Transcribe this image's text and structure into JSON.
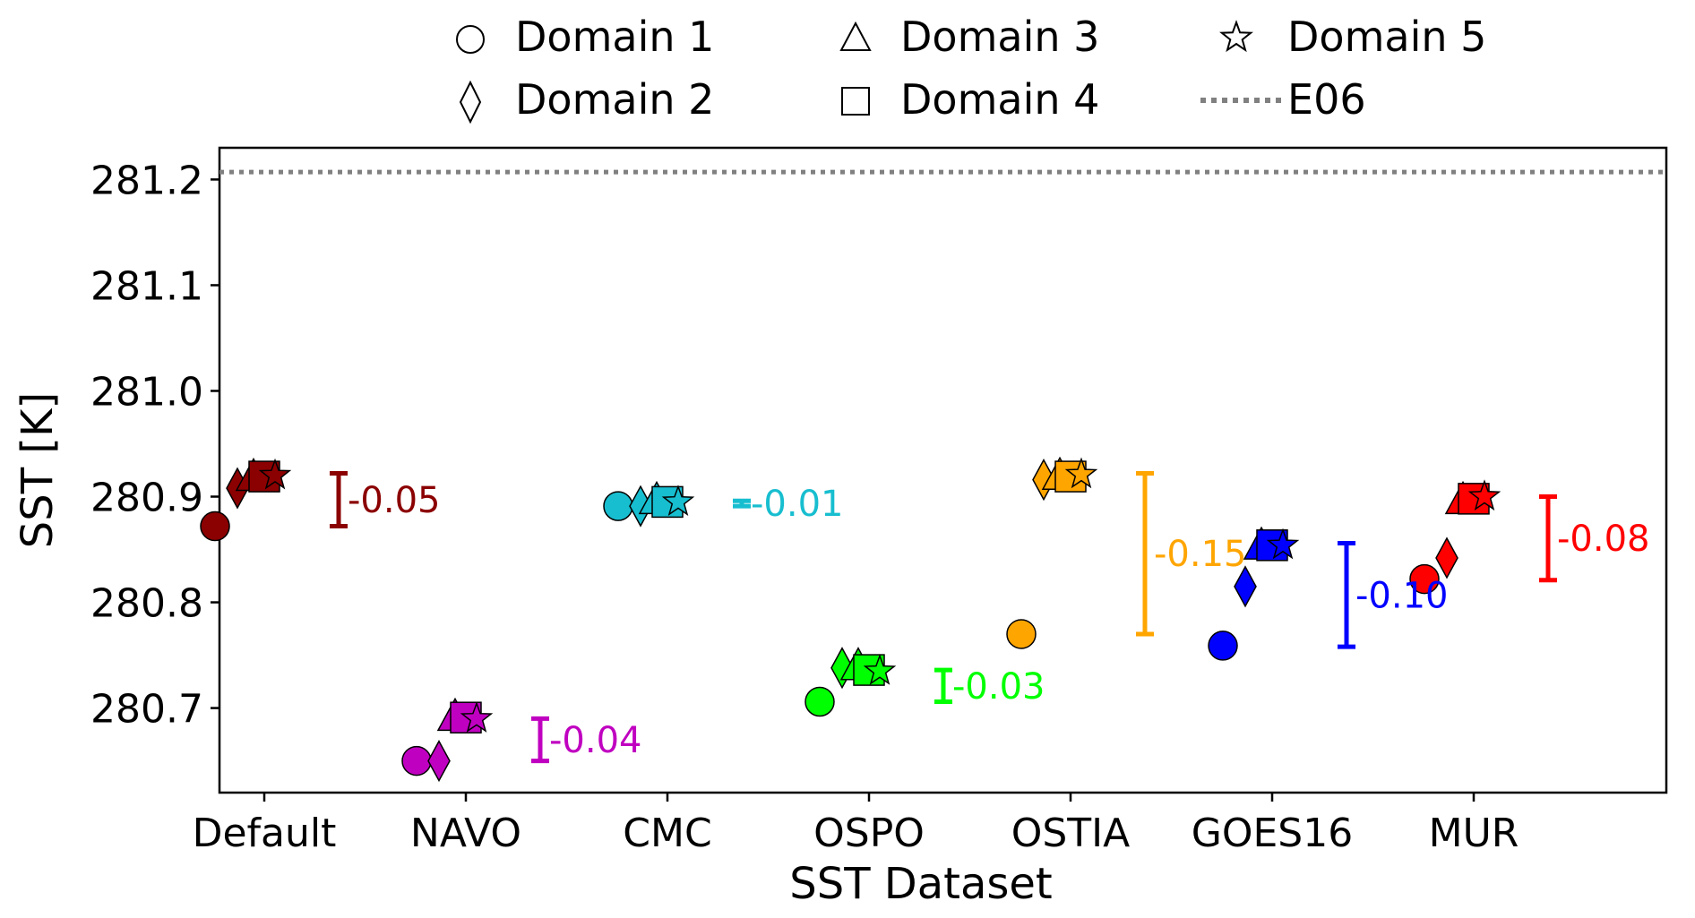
{
  "chart_data": {
    "type": "scatter",
    "title": "",
    "xlabel": "SST Dataset",
    "ylabel": "SST [K]",
    "ylim": [
      280.62,
      281.23
    ],
    "yticks": [
      280.7,
      280.8,
      280.9,
      281.0,
      281.1,
      281.2
    ],
    "ytick_labels": [
      "280.7",
      "280.8",
      "280.9",
      "281.0",
      "281.1",
      "281.2"
    ],
    "categories": [
      "Default",
      "NAVO",
      "CMC",
      "OSPO",
      "OSTIA",
      "GOES16",
      "MUR"
    ],
    "reference_line": {
      "name": "E06",
      "value": 281.207,
      "color": "#808080"
    },
    "legend": {
      "position": "top-center",
      "entries": [
        {
          "marker": "circle",
          "label": "Domain 1"
        },
        {
          "marker": "diamond",
          "label": "Domain 2"
        },
        {
          "marker": "triangle",
          "label": "Domain 3"
        },
        {
          "marker": "square",
          "label": "Domain 4"
        },
        {
          "marker": "star",
          "label": "Domain 5"
        },
        {
          "marker": "dotted-line",
          "label": "E06"
        }
      ]
    },
    "series": [
      {
        "name": "Domain 1",
        "marker": "circle",
        "values": [
          280.872,
          280.65,
          280.891,
          280.706,
          280.77,
          280.759,
          280.822
        ]
      },
      {
        "name": "Domain 2",
        "marker": "diamond",
        "values": [
          280.908,
          280.65,
          280.891,
          280.738,
          280.916,
          280.815,
          280.842
        ]
      },
      {
        "name": "Domain 3",
        "marker": "triangle",
        "values": [
          280.917,
          280.69,
          280.895,
          280.738,
          280.918,
          280.852,
          280.895
        ]
      },
      {
        "name": "Domain 4",
        "marker": "square",
        "values": [
          280.919,
          280.691,
          280.895,
          280.736,
          280.919,
          280.854,
          280.898
        ]
      },
      {
        "name": "Domain 5",
        "marker": "star",
        "values": [
          280.92,
          280.69,
          280.895,
          280.735,
          280.921,
          280.854,
          280.9
        ]
      }
    ],
    "colors": [
      "#8b0000",
      "#c000c0",
      "#17becf",
      "#00ff00",
      "#ffa500",
      "#0000ff",
      "#ff0000"
    ],
    "ranges": [
      {
        "category": "Default",
        "low": 280.872,
        "high": 280.922,
        "label": "-0.05"
      },
      {
        "category": "NAVO",
        "low": 280.65,
        "high": 280.69,
        "label": "-0.04"
      },
      {
        "category": "CMC",
        "low": 280.891,
        "high": 280.896,
        "label": "-0.01"
      },
      {
        "category": "OSPO",
        "low": 280.706,
        "high": 280.736,
        "label": "-0.03"
      },
      {
        "category": "OSTIA",
        "low": 280.77,
        "high": 280.922,
        "label": "-0.15"
      },
      {
        "category": "GOES16",
        "low": 280.758,
        "high": 280.856,
        "label": "-0.10"
      },
      {
        "category": "MUR",
        "low": 280.821,
        "high": 280.9,
        "label": "-0.08"
      }
    ]
  }
}
